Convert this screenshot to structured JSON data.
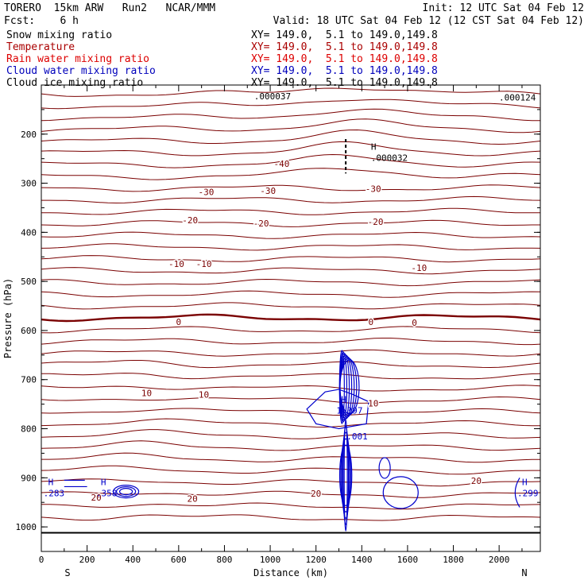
{
  "header": {
    "model": "TORERO  15km ARW   Run2   NCAR/MMM",
    "init": "Init: 12 UTC Sat 04 Feb 12",
    "fcst": "Fcst:    6 h",
    "valid": "Valid: 18 UTC Sat 04 Feb 12 (12 CST Sat 04 Feb 12)"
  },
  "fields": [
    {
      "name": "Snow mixing ratio",
      "xy": "XY= 149.0,  5.1 to 149.0,149.8",
      "color": "#000000"
    },
    {
      "name": "Temperature",
      "xy": "XY= 149.0,  5.1 to 149.0,149.8",
      "color": "#aa0000"
    },
    {
      "name": "Rain water mixing ratio",
      "xy": "XY= 149.0,  5.1 to 149.0,149.8",
      "color": "#dd0000"
    },
    {
      "name": "Cloud water mixing ratio",
      "xy": "XY= 149.0,  5.1 to 149.0,149.8",
      "color": "#0000bb"
    },
    {
      "name": "Cloud ice mixing ratio",
      "xy": "XY= 149.0,  5.1 to 149.0,149.8",
      "color": "#000000"
    }
  ],
  "chart_data": {
    "type": "contour",
    "xlabel": "Distance (km)",
    "ylabel": "Pressure (hPa)",
    "xlim": [
      0,
      2180
    ],
    "ylim": [
      1050,
      100
    ],
    "x_ticks": [
      0,
      200,
      400,
      600,
      800,
      1000,
      1200,
      1400,
      1600,
      1800,
      2000
    ],
    "y_ticks": [
      200,
      300,
      400,
      500,
      600,
      700,
      800,
      900,
      1000
    ],
    "left_end_label": "S",
    "right_end_label": "N",
    "temperature_labels": [
      {
        "text": "-40",
        "x": 1050,
        "p": 260
      },
      {
        "text": "-30",
        "x": 720,
        "p": 318
      },
      {
        "text": "-30",
        "x": 990,
        "p": 315
      },
      {
        "text": "-30",
        "x": 1450,
        "p": 311
      },
      {
        "text": "-20",
        "x": 650,
        "p": 375
      },
      {
        "text": "-20",
        "x": 960,
        "p": 382
      },
      {
        "text": "-20",
        "x": 1460,
        "p": 378
      },
      {
        "text": "-10",
        "x": 590,
        "p": 464
      },
      {
        "text": "-10",
        "x": 710,
        "p": 464
      },
      {
        "text": "-10",
        "x": 1650,
        "p": 472
      },
      {
        "text": "0",
        "x": 600,
        "p": 582
      },
      {
        "text": "0",
        "x": 1440,
        "p": 582
      },
      {
        "text": "0",
        "x": 1630,
        "p": 584
      },
      {
        "text": "10",
        "x": 460,
        "p": 727
      },
      {
        "text": "10",
        "x": 710,
        "p": 730
      },
      {
        "text": "10",
        "x": 1450,
        "p": 748
      },
      {
        "text": "20",
        "x": 240,
        "p": 940
      },
      {
        "text": "20",
        "x": 660,
        "p": 942
      },
      {
        "text": "20",
        "x": 1200,
        "p": 932
      },
      {
        "text": "20",
        "x": 1900,
        "p": 906
      }
    ],
    "maxima": [
      {
        "mark": "H",
        "value": ".000032",
        "x": 1440,
        "p": 240
      },
      {
        "mark": "H",
        "value": "1.397",
        "x": 1310,
        "p": 755
      },
      {
        "mark": "H",
        "value": ".283",
        "x": 30,
        "p": 923
      },
      {
        "mark": "H",
        "value": ".358",
        "x": 260,
        "p": 923
      },
      {
        "mark": "H",
        "value": ".299",
        "x": 2100,
        "p": 923
      }
    ],
    "other_labels": [
      {
        "text": ".001",
        "x": 1380,
        "p": 815
      },
      {
        "text": ".000124",
        "x": 2080,
        "p": 125
      },
      {
        "text": ".000037",
        "x": 1010,
        "p": 123
      }
    ]
  }
}
